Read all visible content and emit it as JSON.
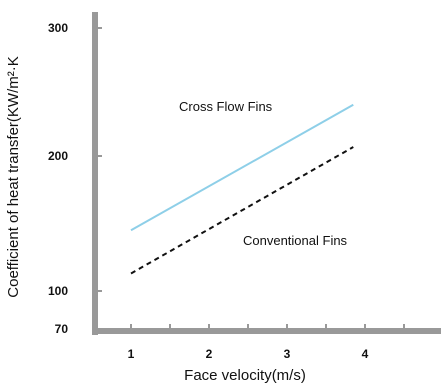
{
  "chart_data": {
    "type": "line",
    "xlabel": "Face velocity(m/s)",
    "ylabel": "Coefficient of heat transfer(KW/m²·K",
    "x_ticks": [
      1,
      2,
      3,
      4
    ],
    "y_ticks": [
      70,
      100,
      200,
      300
    ],
    "xlim": [
      0.65,
      5.0
    ],
    "ylim": [
      70,
      320
    ],
    "grid": false,
    "legend": "none",
    "series": [
      {
        "name": "Cross Flow Fins",
        "x": [
          1.0,
          3.85
        ],
        "y": [
          145,
          240
        ],
        "color": "#8ecfe8",
        "style": "solid"
      },
      {
        "name": "Conventional Fins",
        "x": [
          1.0,
          3.85
        ],
        "y": [
          113,
          207
        ],
        "color": "#111111",
        "style": "dashed"
      }
    ]
  },
  "axis_color": "#999999"
}
